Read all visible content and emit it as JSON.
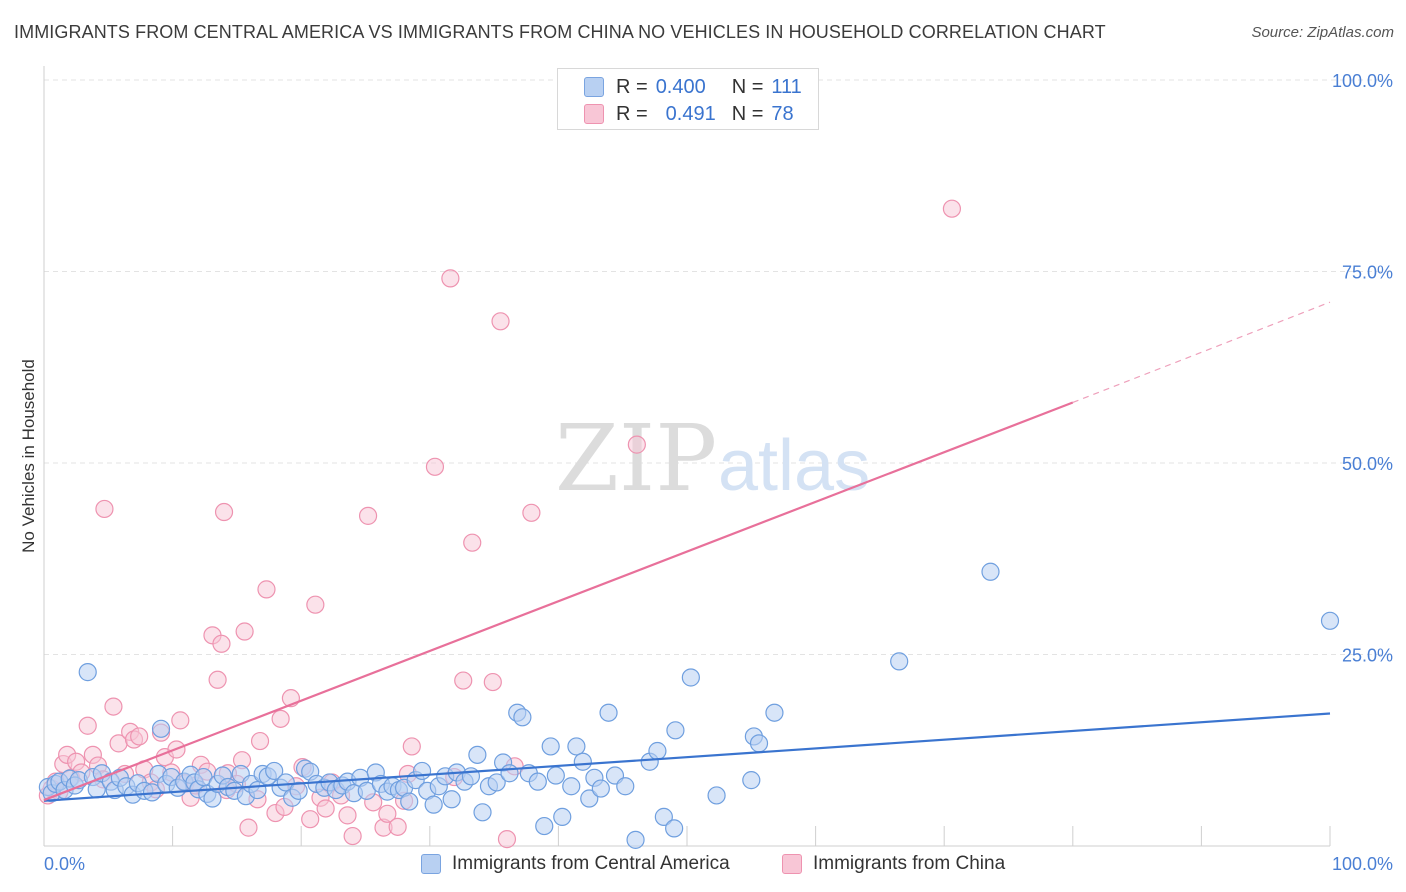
{
  "title": "IMMIGRANTS FROM CENTRAL AMERICA VS IMMIGRANTS FROM CHINA NO VEHICLES IN HOUSEHOLD CORRELATION CHART",
  "source": "Source: ZipAtlas.com",
  "watermark": {
    "zip": "ZIP",
    "atlas": "atlas"
  },
  "legend_top": [
    {
      "r_label": "R =",
      "r_value": "0.400",
      "n_label": "N =",
      "n_value": "111"
    },
    {
      "r_label": "R =",
      "r_value": "0.491",
      "n_label": "N =",
      "n_value": "78"
    }
  ],
  "colors": {
    "blue": "#3a74cf",
    "blue_fill": "#b8d0f2",
    "pink": "#e8709a",
    "pink_fill": "#f8c6d6",
    "axis_label": "#4a7fd4"
  },
  "chart_data": {
    "type": "scatter",
    "ylabel": "No Vehicles in Household",
    "xlabel": "",
    "xlim": [
      0,
      100
    ],
    "ylim": [
      0,
      100
    ],
    "x_tick_labels": [
      "0.0%",
      "100.0%"
    ],
    "y_tick_labels": [
      "100.0%",
      "75.0%",
      "50.0%",
      "25.0%"
    ],
    "y_ticks": [
      100,
      75,
      50,
      25
    ],
    "grid": true,
    "legend_placement": "bottom",
    "series": [
      {
        "name": "Immigrants from Central America",
        "color": "#3a74cf",
        "trend": {
          "x": [
            0,
            100
          ],
          "y": [
            5.9,
            17.3
          ]
        },
        "points": [
          [
            0.3,
            7.7
          ],
          [
            0.6,
            6.9
          ],
          [
            0.9,
            8.1
          ],
          [
            1.2,
            8.4
          ],
          [
            1.6,
            7.3
          ],
          [
            2.0,
            8.8
          ],
          [
            2.4,
            7.9
          ],
          [
            2.7,
            8.6
          ],
          [
            3.4,
            22.7
          ],
          [
            3.8,
            9.0
          ],
          [
            4.1,
            7.4
          ],
          [
            4.5,
            9.5
          ],
          [
            5.2,
            8.4
          ],
          [
            5.5,
            7.3
          ],
          [
            5.9,
            8.9
          ],
          [
            6.4,
            7.8
          ],
          [
            6.9,
            6.7
          ],
          [
            7.3,
            8.2
          ],
          [
            7.8,
            7.2
          ],
          [
            8.4,
            7.0
          ],
          [
            8.9,
            9.4
          ],
          [
            9.1,
            15.3
          ],
          [
            9.5,
            8.1
          ],
          [
            9.9,
            9.0
          ],
          [
            10.4,
            7.6
          ],
          [
            10.9,
            8.4
          ],
          [
            11.4,
            9.3
          ],
          [
            11.7,
            8.3
          ],
          [
            12.0,
            7.4
          ],
          [
            12.4,
            9.0
          ],
          [
            12.7,
            6.8
          ],
          [
            13.1,
            6.2
          ],
          [
            13.5,
            8.1
          ],
          [
            13.9,
            9.2
          ],
          [
            14.3,
            7.7
          ],
          [
            14.8,
            7.2
          ],
          [
            15.3,
            9.4
          ],
          [
            15.7,
            6.5
          ],
          [
            16.1,
            8.1
          ],
          [
            16.6,
            7.3
          ],
          [
            17.0,
            9.4
          ],
          [
            17.4,
            9.1
          ],
          [
            17.9,
            9.8
          ],
          [
            18.4,
            7.6
          ],
          [
            18.8,
            8.3
          ],
          [
            19.3,
            6.3
          ],
          [
            19.8,
            7.2
          ],
          [
            20.3,
            10.1
          ],
          [
            20.7,
            9.7
          ],
          [
            21.2,
            8.1
          ],
          [
            21.8,
            7.6
          ],
          [
            22.2,
            8.3
          ],
          [
            22.7,
            7.3
          ],
          [
            23.2,
            7.9
          ],
          [
            23.6,
            8.4
          ],
          [
            24.1,
            6.9
          ],
          [
            24.6,
            8.9
          ],
          [
            25.1,
            7.2
          ],
          [
            25.8,
            9.6
          ],
          [
            26.2,
            8.1
          ],
          [
            26.7,
            7.1
          ],
          [
            27.1,
            7.8
          ],
          [
            27.6,
            7.3
          ],
          [
            28.0,
            7.6
          ],
          [
            28.4,
            5.8
          ],
          [
            28.9,
            8.6
          ],
          [
            29.4,
            9.8
          ],
          [
            29.8,
            7.2
          ],
          [
            30.3,
            5.4
          ],
          [
            30.7,
            7.8
          ],
          [
            31.2,
            9.1
          ],
          [
            31.7,
            6.1
          ],
          [
            32.1,
            9.6
          ],
          [
            32.7,
            8.4
          ],
          [
            33.2,
            9.1
          ],
          [
            33.7,
            11.9
          ],
          [
            34.1,
            4.4
          ],
          [
            34.6,
            7.8
          ],
          [
            35.2,
            8.3
          ],
          [
            35.7,
            10.9
          ],
          [
            36.2,
            9.5
          ],
          [
            36.8,
            17.4
          ],
          [
            37.2,
            16.8
          ],
          [
            37.7,
            9.5
          ],
          [
            38.4,
            8.4
          ],
          [
            38.9,
            2.6
          ],
          [
            39.4,
            13.0
          ],
          [
            39.8,
            9.2
          ],
          [
            40.3,
            3.8
          ],
          [
            41.0,
            7.8
          ],
          [
            41.4,
            13.0
          ],
          [
            41.9,
            11.0
          ],
          [
            42.4,
            6.2
          ],
          [
            42.8,
            8.9
          ],
          [
            43.3,
            7.5
          ],
          [
            43.9,
            17.4
          ],
          [
            44.4,
            9.2
          ],
          [
            45.2,
            7.8
          ],
          [
            46.0,
            0.8
          ],
          [
            47.1,
            11.0
          ],
          [
            47.7,
            12.4
          ],
          [
            48.2,
            3.8
          ],
          [
            49.0,
            2.3
          ],
          [
            49.1,
            15.1
          ],
          [
            50.3,
            22.0
          ],
          [
            52.3,
            6.6
          ],
          [
            55.2,
            14.3
          ],
          [
            55.6,
            13.4
          ],
          [
            56.8,
            17.4
          ],
          [
            66.5,
            24.1
          ],
          [
            73.6,
            35.8
          ],
          [
            100.0,
            29.4
          ],
          [
            55.0,
            8.6
          ]
        ]
      },
      {
        "name": "Immigrants from China",
        "color": "#e8709a",
        "trend": {
          "x": [
            0,
            80
          ],
          "y": [
            6.0,
            57.9
          ]
        },
        "trend_extension": {
          "x": [
            80,
            100
          ],
          "y": [
            57.9,
            71.0
          ]
        },
        "points": [
          [
            0.3,
            6.6
          ],
          [
            0.6,
            7.5
          ],
          [
            0.9,
            8.4
          ],
          [
            1.2,
            7.1
          ],
          [
            1.5,
            10.7
          ],
          [
            1.8,
            11.9
          ],
          [
            2.1,
            8.9
          ],
          [
            2.5,
            11.0
          ],
          [
            2.9,
            9.6
          ],
          [
            3.4,
            15.7
          ],
          [
            3.8,
            11.9
          ],
          [
            4.2,
            10.5
          ],
          [
            4.6,
            8.7
          ],
          [
            4.7,
            44.0
          ],
          [
            5.4,
            18.2
          ],
          [
            5.8,
            13.4
          ],
          [
            6.3,
            9.4
          ],
          [
            6.7,
            14.9
          ],
          [
            7.0,
            13.9
          ],
          [
            7.4,
            14.3
          ],
          [
            7.8,
            10.0
          ],
          [
            8.3,
            8.3
          ],
          [
            8.7,
            7.4
          ],
          [
            9.1,
            14.8
          ],
          [
            9.4,
            11.6
          ],
          [
            9.9,
            9.6
          ],
          [
            10.3,
            12.6
          ],
          [
            10.6,
            16.4
          ],
          [
            11.0,
            8.2
          ],
          [
            11.4,
            6.3
          ],
          [
            11.8,
            7.9
          ],
          [
            12.2,
            10.6
          ],
          [
            12.7,
            9.7
          ],
          [
            13.1,
            27.5
          ],
          [
            13.5,
            21.7
          ],
          [
            13.8,
            26.4
          ],
          [
            14.2,
            7.3
          ],
          [
            14.0,
            43.6
          ],
          [
            14.3,
            9.5
          ],
          [
            15.0,
            8.1
          ],
          [
            15.4,
            11.2
          ],
          [
            15.6,
            28.0
          ],
          [
            15.9,
            2.4
          ],
          [
            16.6,
            6.1
          ],
          [
            16.8,
            13.7
          ],
          [
            17.3,
            33.5
          ],
          [
            18.0,
            4.3
          ],
          [
            18.4,
            16.6
          ],
          [
            18.7,
            5.1
          ],
          [
            19.2,
            19.3
          ],
          [
            19.6,
            7.8
          ],
          [
            20.1,
            10.3
          ],
          [
            20.7,
            3.5
          ],
          [
            21.1,
            31.5
          ],
          [
            21.5,
            6.3
          ],
          [
            21.9,
            4.9
          ],
          [
            22.4,
            8.3
          ],
          [
            23.1,
            6.6
          ],
          [
            23.6,
            4.0
          ],
          [
            24.0,
            1.3
          ],
          [
            25.2,
            43.1
          ],
          [
            25.6,
            5.7
          ],
          [
            26.4,
            2.4
          ],
          [
            26.7,
            4.2
          ],
          [
            27.5,
            2.5
          ],
          [
            28.0,
            5.9
          ],
          [
            28.3,
            9.4
          ],
          [
            28.6,
            13.0
          ],
          [
            30.4,
            49.5
          ],
          [
            31.6,
            74.1
          ],
          [
            31.9,
            9.0
          ],
          [
            32.6,
            21.6
          ],
          [
            33.3,
            39.6
          ],
          [
            34.9,
            21.4
          ],
          [
            35.5,
            68.5
          ],
          [
            36.0,
            0.9
          ],
          [
            36.6,
            10.4
          ],
          [
            37.9,
            43.5
          ],
          [
            46.1,
            52.4
          ],
          [
            70.6,
            83.2
          ]
        ]
      }
    ]
  }
}
